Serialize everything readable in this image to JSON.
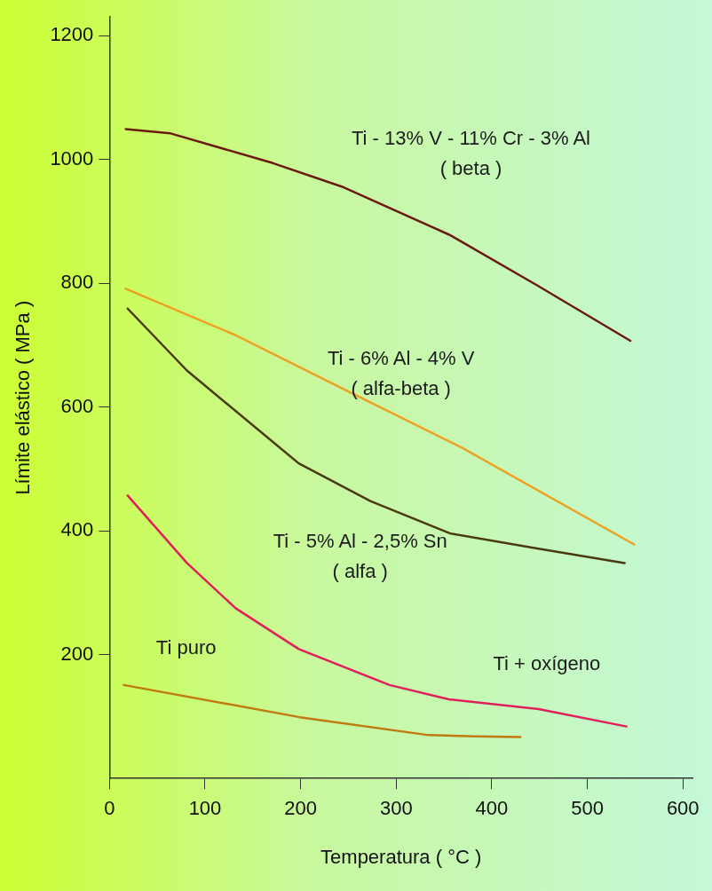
{
  "chart_data": {
    "type": "line",
    "xlabel": "Temperatura ( °C )",
    "ylabel": "Límite elástico ( MPa )",
    "xlim": [
      0,
      610
    ],
    "ylim": [
      0,
      1230
    ],
    "xticks": [
      0,
      100,
      200,
      300,
      400,
      500,
      600
    ],
    "yticks": [
      200,
      400,
      600,
      800,
      1000,
      1200
    ],
    "grid": false,
    "legend": false,
    "marker": "none",
    "line_style": "solid",
    "series": [
      {
        "name": "Ti - 13% V - 11% Cr - 3% Al\n( beta )",
        "color": "#6b1a10",
        "x": [
          17,
          64,
          171,
          245,
          356,
          447,
          545
        ],
        "values": [
          1049,
          1042,
          994,
          955,
          878,
          797,
          707
        ]
      },
      {
        "name": "Ti - 6% Al - 4% V\n( alfa-beta )",
        "color": "#f0a020",
        "x": [
          17,
          132,
          249,
          368,
          549
        ],
        "values": [
          791,
          716,
          626,
          535,
          378
        ]
      },
      {
        "name": "Ti - 5% Al - 2,5% Sn\n( alfa )",
        "color": "#4a3a10",
        "x": [
          19,
          81,
          198,
          273,
          356,
          446,
          539
        ],
        "values": [
          759,
          659,
          509,
          448,
          396,
          372,
          348
        ]
      },
      {
        "name": "Ti puro",
        "color": "#c07a10",
        "x": [
          15,
          199,
          334,
          383,
          430
        ],
        "values": [
          151,
          99,
          70,
          68,
          67
        ]
      },
      {
        "name": "Ti + oxígeno",
        "color": "#e0205a",
        "x": [
          19,
          81,
          132,
          198,
          293,
          355,
          449,
          541
        ],
        "values": [
          457,
          348,
          275,
          209,
          151,
          128,
          112,
          84
        ]
      }
    ]
  }
}
